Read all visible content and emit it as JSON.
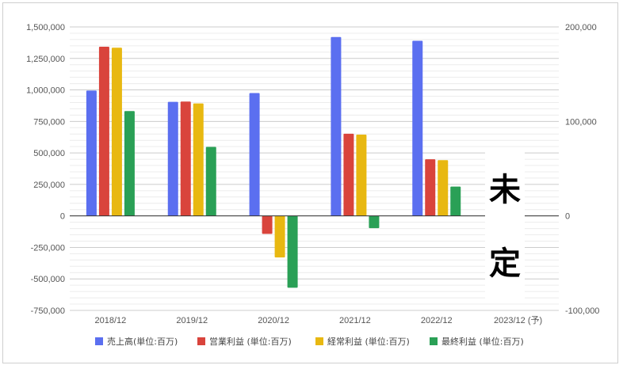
{
  "chart_data": {
    "type": "bar",
    "categories": [
      "2018/12",
      "2019/12",
      "2020/12",
      "2021/12",
      "2022/12",
      "2023/12 (予)"
    ],
    "series": [
      {
        "name": "売上高(単位:百万)",
        "color": "#5b6ff0",
        "axis": "left",
        "values": [
          995000,
          905000,
          975000,
          1420000,
          1390000,
          null
        ]
      },
      {
        "name": "営業利益 (単位:百万)",
        "color": "#d9443c",
        "axis": "right",
        "values": [
          179000,
          121000,
          -19000,
          87000,
          60000,
          null
        ]
      },
      {
        "name": "経常利益 (単位:百万)",
        "color": "#e8b811",
        "axis": "right",
        "values": [
          178000,
          119000,
          -44000,
          86000,
          59000,
          null
        ]
      },
      {
        "name": "最終利益 (単位:百万)",
        "color": "#2aa056",
        "axis": "right",
        "values": [
          111000,
          73000,
          -76000,
          -13000,
          31000,
          null
        ]
      }
    ],
    "left_axis": {
      "ylim": [
        -750000,
        1500000
      ],
      "tick_labels": [
        "1,500,000",
        "1,250,000",
        "1,000,000",
        "750,000",
        "500,000",
        "250,000",
        "0",
        "-250,000",
        "-500,000",
        "-750,000"
      ]
    },
    "right_axis": {
      "ylim": [
        -100000,
        200000
      ],
      "tick_labels": [
        "200,000",
        "100,000",
        "0",
        "-100,000"
      ]
    },
    "grid": true,
    "legend_position": "bottom",
    "annotation": {
      "line1": "未",
      "line2": "定"
    }
  }
}
